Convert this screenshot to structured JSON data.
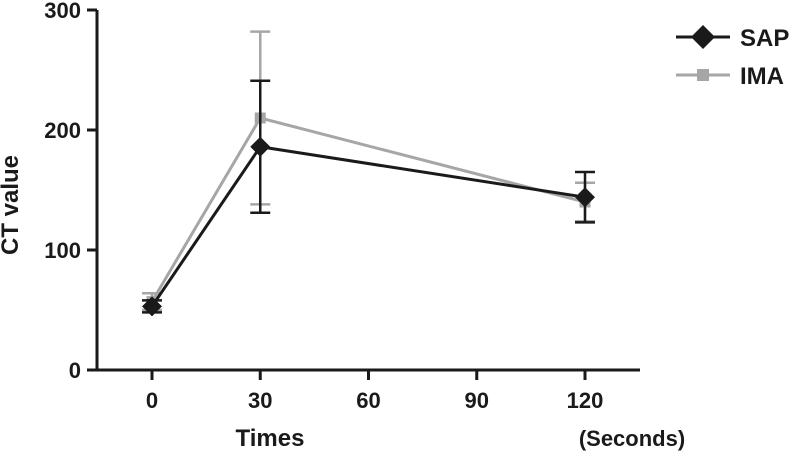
{
  "chart_data": {
    "type": "line",
    "xlabel": "Times",
    "x_unit_label": "(Seconds)",
    "ylabel": "CT value",
    "x": [
      0,
      30,
      120
    ],
    "xlim": [
      0,
      120
    ],
    "ylim": [
      0,
      300
    ],
    "x_ticks": [
      "0",
      "30",
      "60",
      "90",
      "120"
    ],
    "y_ticks": [
      "0",
      "100",
      "200",
      "300"
    ],
    "grid": false,
    "legend_position": "top-right",
    "series": [
      {
        "name": "SAP",
        "color": "#1a1a1a",
        "marker": "diamond",
        "values": [
          53,
          186,
          144
        ],
        "error": [
          5,
          55,
          21
        ]
      },
      {
        "name": "IMA",
        "color": "#a6a6a6",
        "marker": "square",
        "values": [
          57,
          210,
          140
        ],
        "error": [
          7,
          72,
          16
        ]
      }
    ]
  }
}
